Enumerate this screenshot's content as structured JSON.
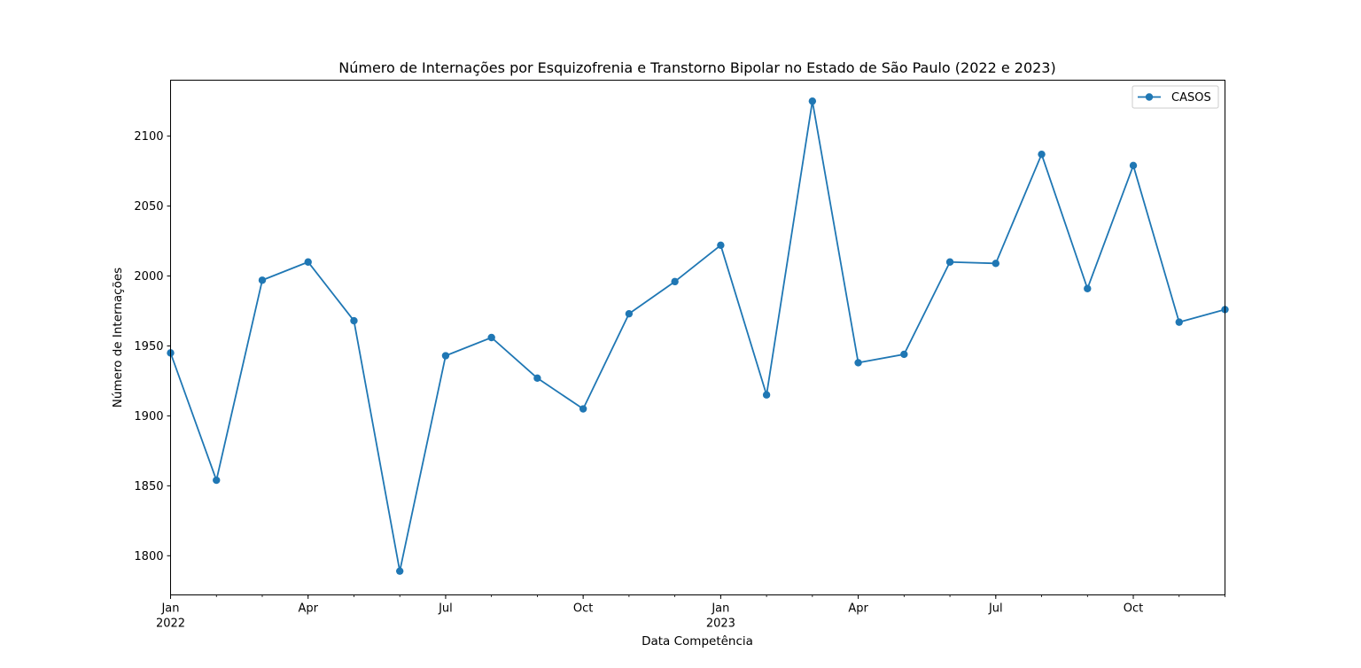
{
  "chart_data": {
    "type": "line",
    "title": "Número de Internações por Esquizofrenia e Transtorno Bipolar no Estado de São Paulo (2022 e 2023)",
    "xlabel": "Data Competência",
    "ylabel": "Número de Internações",
    "x": [
      "2022-01",
      "2022-02",
      "2022-03",
      "2022-04",
      "2022-05",
      "2022-06",
      "2022-07",
      "2022-08",
      "2022-09",
      "2022-10",
      "2022-11",
      "2022-12",
      "2023-01",
      "2023-02",
      "2023-03",
      "2023-04",
      "2023-05",
      "2023-06",
      "2023-07",
      "2023-08",
      "2023-09",
      "2023-10",
      "2023-11",
      "2023-12"
    ],
    "series": [
      {
        "name": "CASOS",
        "color": "#1f77b4",
        "values": [
          1945,
          1854,
          1997,
          2010,
          1968,
          1789,
          1943,
          1956,
          1927,
          1905,
          1973,
          1996,
          2022,
          1915,
          2125,
          1938,
          1944,
          2010,
          2009,
          2087,
          1991,
          2079,
          1967,
          1976
        ]
      }
    ],
    "ylim": [
      1772,
      2140
    ],
    "yticks": [
      "1800",
      "1850",
      "1900",
      "1950",
      "2000",
      "2050",
      "2100"
    ],
    "xticks": [
      {
        "label": "Jan",
        "sublabel": "2022"
      },
      {
        "label": "Apr",
        "sublabel": ""
      },
      {
        "label": "Jul",
        "sublabel": ""
      },
      {
        "label": "Oct",
        "sublabel": ""
      },
      {
        "label": "Jan",
        "sublabel": "2023"
      },
      {
        "label": "Apr",
        "sublabel": ""
      },
      {
        "label": "Jul",
        "sublabel": ""
      },
      {
        "label": "Oct",
        "sublabel": ""
      }
    ],
    "grid": false,
    "legend_position": "top-right"
  }
}
